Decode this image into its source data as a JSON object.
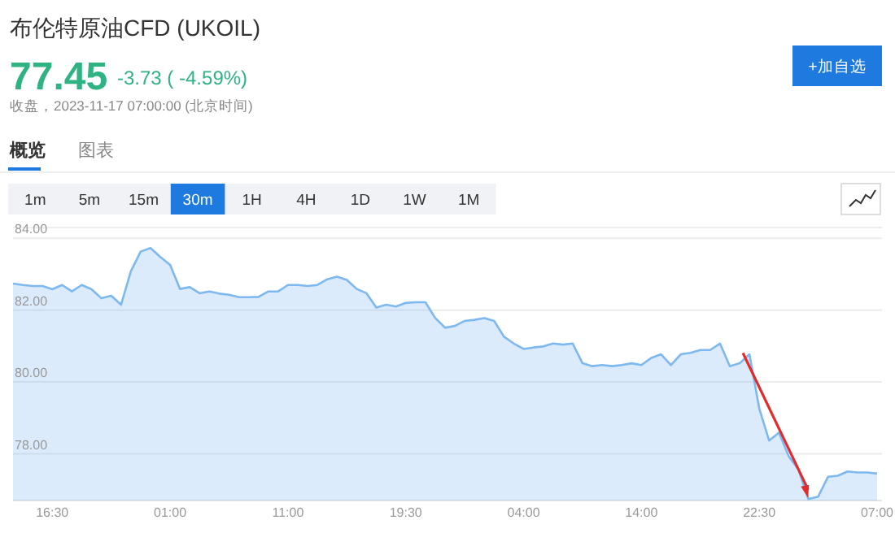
{
  "chart_data": {
    "type": "area",
    "title": "布伦特原油CFD (UKOIL)",
    "subtitle": "77.45",
    "annotations": [
      "-3.73 ( -4.59%)",
      "收盘，2023-11-17 07:00:00 (北京时间)",
      "+加自选",
      "概览",
      "图表",
      "1m",
      "5m",
      "15m",
      "30m",
      "1H",
      "4H",
      "1D",
      "1W",
      "1M"
    ],
    "categories": [
      null,
      null,
      null,
      null,
      "16:30",
      null,
      null,
      null,
      null,
      null,
      null,
      null,
      null,
      null,
      null,
      null,
      "01:00",
      null,
      null,
      null,
      null,
      null,
      null,
      null,
      null,
      null,
      null,
      null,
      "11:00",
      null,
      null,
      null,
      null,
      null,
      null,
      null,
      null,
      null,
      null,
      null,
      "19:30",
      null,
      null,
      null,
      null,
      null,
      null,
      null,
      null,
      null,
      null,
      null,
      "04:00",
      null,
      null,
      null,
      null,
      null,
      null,
      null,
      null,
      null,
      null,
      null,
      "14:00",
      null,
      null,
      null,
      null,
      null,
      null,
      null,
      null,
      null,
      null,
      null,
      "22:30",
      null,
      null,
      null,
      null,
      null,
      null,
      null,
      null,
      null,
      null,
      null,
      "07:00"
    ],
    "series": [
      {
        "color": "#7db8f0",
        "values": [
          82.74,
          82.7,
          82.67,
          82.67,
          82.58,
          82.7,
          82.52,
          82.7,
          82.58,
          82.33,
          82.4,
          82.15,
          83.08,
          83.63,
          83.73,
          83.48,
          83.26,
          82.59,
          82.64,
          82.47,
          82.52,
          82.46,
          82.43,
          82.36,
          82.36,
          82.37,
          82.52,
          82.52,
          82.7,
          82.7,
          82.67,
          82.7,
          82.86,
          82.93,
          82.84,
          82.59,
          82.47,
          82.07,
          82.15,
          82.1,
          82.2,
          82.22,
          82.22,
          81.78,
          81.51,
          81.56,
          81.7,
          81.73,
          81.78,
          81.7,
          81.26,
          81.07,
          80.92,
          80.96,
          80.99,
          81.07,
          81.04,
          81.07,
          80.52,
          80.44,
          80.47,
          80.44,
          80.47,
          80.52,
          80.47,
          80.67,
          80.77,
          80.47,
          80.77,
          80.81,
          80.89,
          80.89,
          81.07,
          80.44,
          80.52,
          80.77,
          79.26,
          78.37,
          78.59,
          77.93,
          77.56,
          76.74,
          76.81,
          77.36,
          77.39,
          77.51,
          77.48,
          77.48,
          77.45
        ]
      }
    ],
    "ylim": [
      76.7,
      84.3
    ],
    "yticks": [
      {
        "value": 78,
        "label": "78.00"
      },
      {
        "value": 80,
        "label": "80.00"
      },
      {
        "value": 82,
        "label": "82.00"
      },
      {
        "value": 84,
        "label": "84.00"
      }
    ],
    "grid": "y"
  }
}
